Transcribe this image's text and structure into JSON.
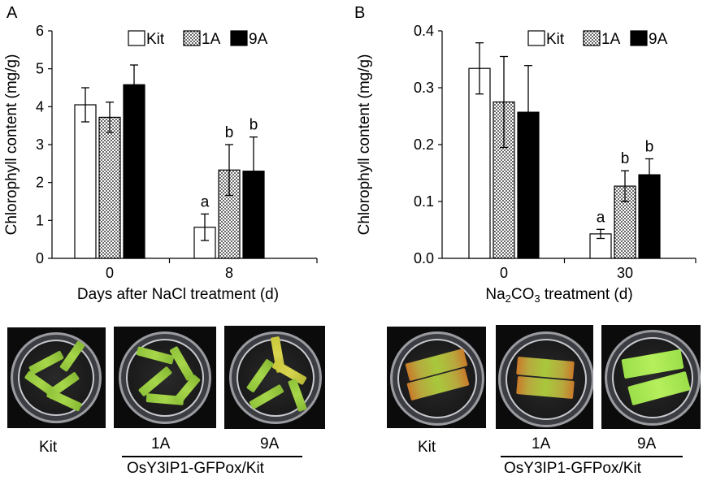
{
  "chart_data": [
    {
      "type": "bar",
      "panel_letter": "A",
      "ylabel": "Chlorophyll content (mg/g)",
      "xlabel": "Days after NaCl treatment (d)",
      "categories": [
        "0",
        "8"
      ],
      "yticks": [
        "0",
        "1",
        "2",
        "3",
        "4",
        "5",
        "6"
      ],
      "ylim": [
        0,
        6
      ],
      "series": [
        {
          "name": "Kit",
          "values": [
            4.05,
            0.82
          ],
          "errors": [
            0.45,
            0.35
          ],
          "labels": [
            "",
            "a"
          ]
        },
        {
          "name": "1A",
          "values": [
            3.72,
            2.33
          ],
          "errors": [
            0.4,
            0.67
          ],
          "labels": [
            "",
            "b"
          ]
        },
        {
          "name": "9A",
          "values": [
            4.58,
            2.3
          ],
          "errors": [
            0.52,
            0.9
          ],
          "labels": [
            "",
            "b"
          ]
        }
      ],
      "legend_position": "top"
    },
    {
      "type": "bar",
      "panel_letter": "B",
      "ylabel": "Chlorophyll content (mg/g)",
      "xlabel_main": "Na",
      "xlabel_sub1": "2",
      "xlabel_mid": "CO",
      "xlabel_sub2": "3",
      "xlabel_tail": " treatment (d)",
      "categories": [
        "0",
        "30"
      ],
      "yticks": [
        "0.0",
        "0.1",
        "0.2",
        "0.3",
        "0.4"
      ],
      "ylim": [
        0,
        0.4
      ],
      "series": [
        {
          "name": "Kit",
          "values": [
            0.334,
            0.043
          ],
          "errors": [
            0.045,
            0.008
          ],
          "labels": [
            "",
            "a"
          ]
        },
        {
          "name": "1A",
          "values": [
            0.275,
            0.127
          ],
          "errors": [
            0.08,
            0.027
          ],
          "labels": [
            "",
            "b"
          ]
        },
        {
          "name": "9A",
          "values": [
            0.257,
            0.147
          ],
          "errors": [
            0.082,
            0.028
          ],
          "labels": [
            "",
            "b"
          ]
        }
      ],
      "legend_position": "top"
    }
  ],
  "photos": {
    "left": {
      "labels": [
        "Kit",
        "1A",
        "9A"
      ],
      "group_label": "OsY3IP1-GFPox/Kit"
    },
    "right": {
      "labels": [
        "Kit",
        "1A",
        "9A"
      ],
      "group_label": "OsY3IP1-GFPox/Kit"
    }
  },
  "colors": {
    "kit": "#ffffff",
    "line_1a": "#000000",
    "line_9a": "#000000"
  }
}
